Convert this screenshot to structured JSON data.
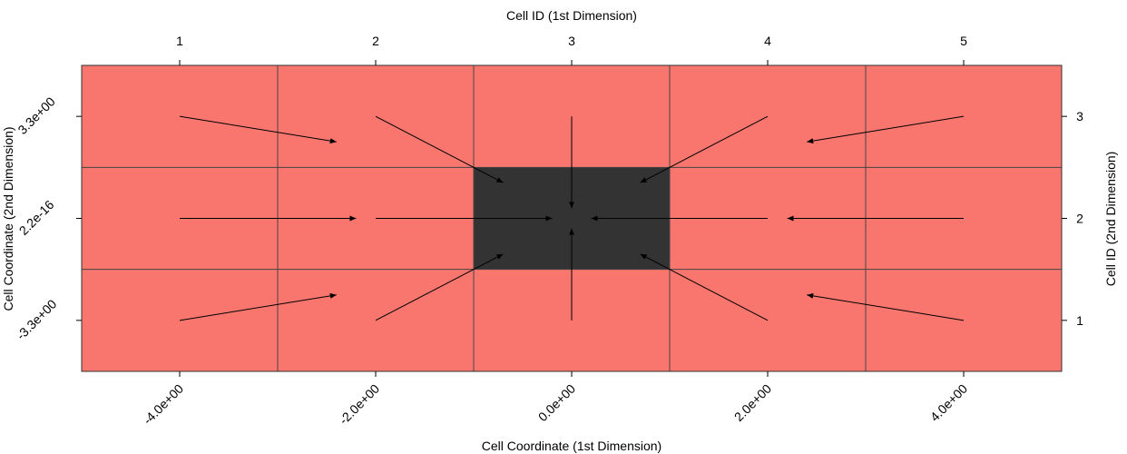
{
  "chart_data": {
    "type": "heatmap",
    "title": "",
    "x_top_label": "Cell ID (1st Dimension)",
    "x_bottom_label": "Cell Coordinate (1st Dimension)",
    "y_left_label": "Cell Coordinate (2nd Dimension)",
    "y_right_label": "Cell ID (2nd Dimension)",
    "x_ids": [
      1,
      2,
      3,
      4,
      5
    ],
    "y_ids": [
      1,
      2,
      3
    ],
    "x_coord_ticks": [
      "-4.0e+00",
      "-2.0e+00",
      "0.0e+00",
      "2.0e+00",
      "4.0e+00"
    ],
    "y_coord_ticks": [
      "-3.3e+00",
      "2.2e-16",
      "3.3e+00"
    ],
    "x_range": [
      0.5,
      5.5
    ],
    "y_range": [
      0.5,
      3.5
    ],
    "colors": {
      "cell_default": "#f8766d",
      "cell_highlight": "#333333",
      "grid_line": "#444444",
      "arrow": "#000000"
    },
    "highlight_cells": [
      [
        3,
        2
      ]
    ],
    "arrows": [
      {
        "from": [
          1,
          3
        ],
        "to": [
          1.8,
          2.75
        ]
      },
      {
        "from": [
          2,
          3
        ],
        "to": [
          2.65,
          2.35
        ]
      },
      {
        "from": [
          3,
          3
        ],
        "to": [
          3,
          2.1
        ]
      },
      {
        "from": [
          4,
          3
        ],
        "to": [
          3.35,
          2.35
        ]
      },
      {
        "from": [
          5,
          3
        ],
        "to": [
          4.2,
          2.75
        ]
      },
      {
        "from": [
          1,
          2
        ],
        "to": [
          1.9,
          2
        ]
      },
      {
        "from": [
          2,
          2
        ],
        "to": [
          2.9,
          2
        ]
      },
      {
        "from": [
          4,
          2
        ],
        "to": [
          3.1,
          2
        ]
      },
      {
        "from": [
          5,
          2
        ],
        "to": [
          4.1,
          2
        ]
      },
      {
        "from": [
          1,
          1
        ],
        "to": [
          1.8,
          1.25
        ]
      },
      {
        "from": [
          2,
          1
        ],
        "to": [
          2.65,
          1.65
        ]
      },
      {
        "from": [
          3,
          1
        ],
        "to": [
          3,
          1.9
        ]
      },
      {
        "from": [
          4,
          1
        ],
        "to": [
          3.35,
          1.65
        ]
      },
      {
        "from": [
          5,
          1
        ],
        "to": [
          4.2,
          1.25
        ]
      }
    ]
  }
}
